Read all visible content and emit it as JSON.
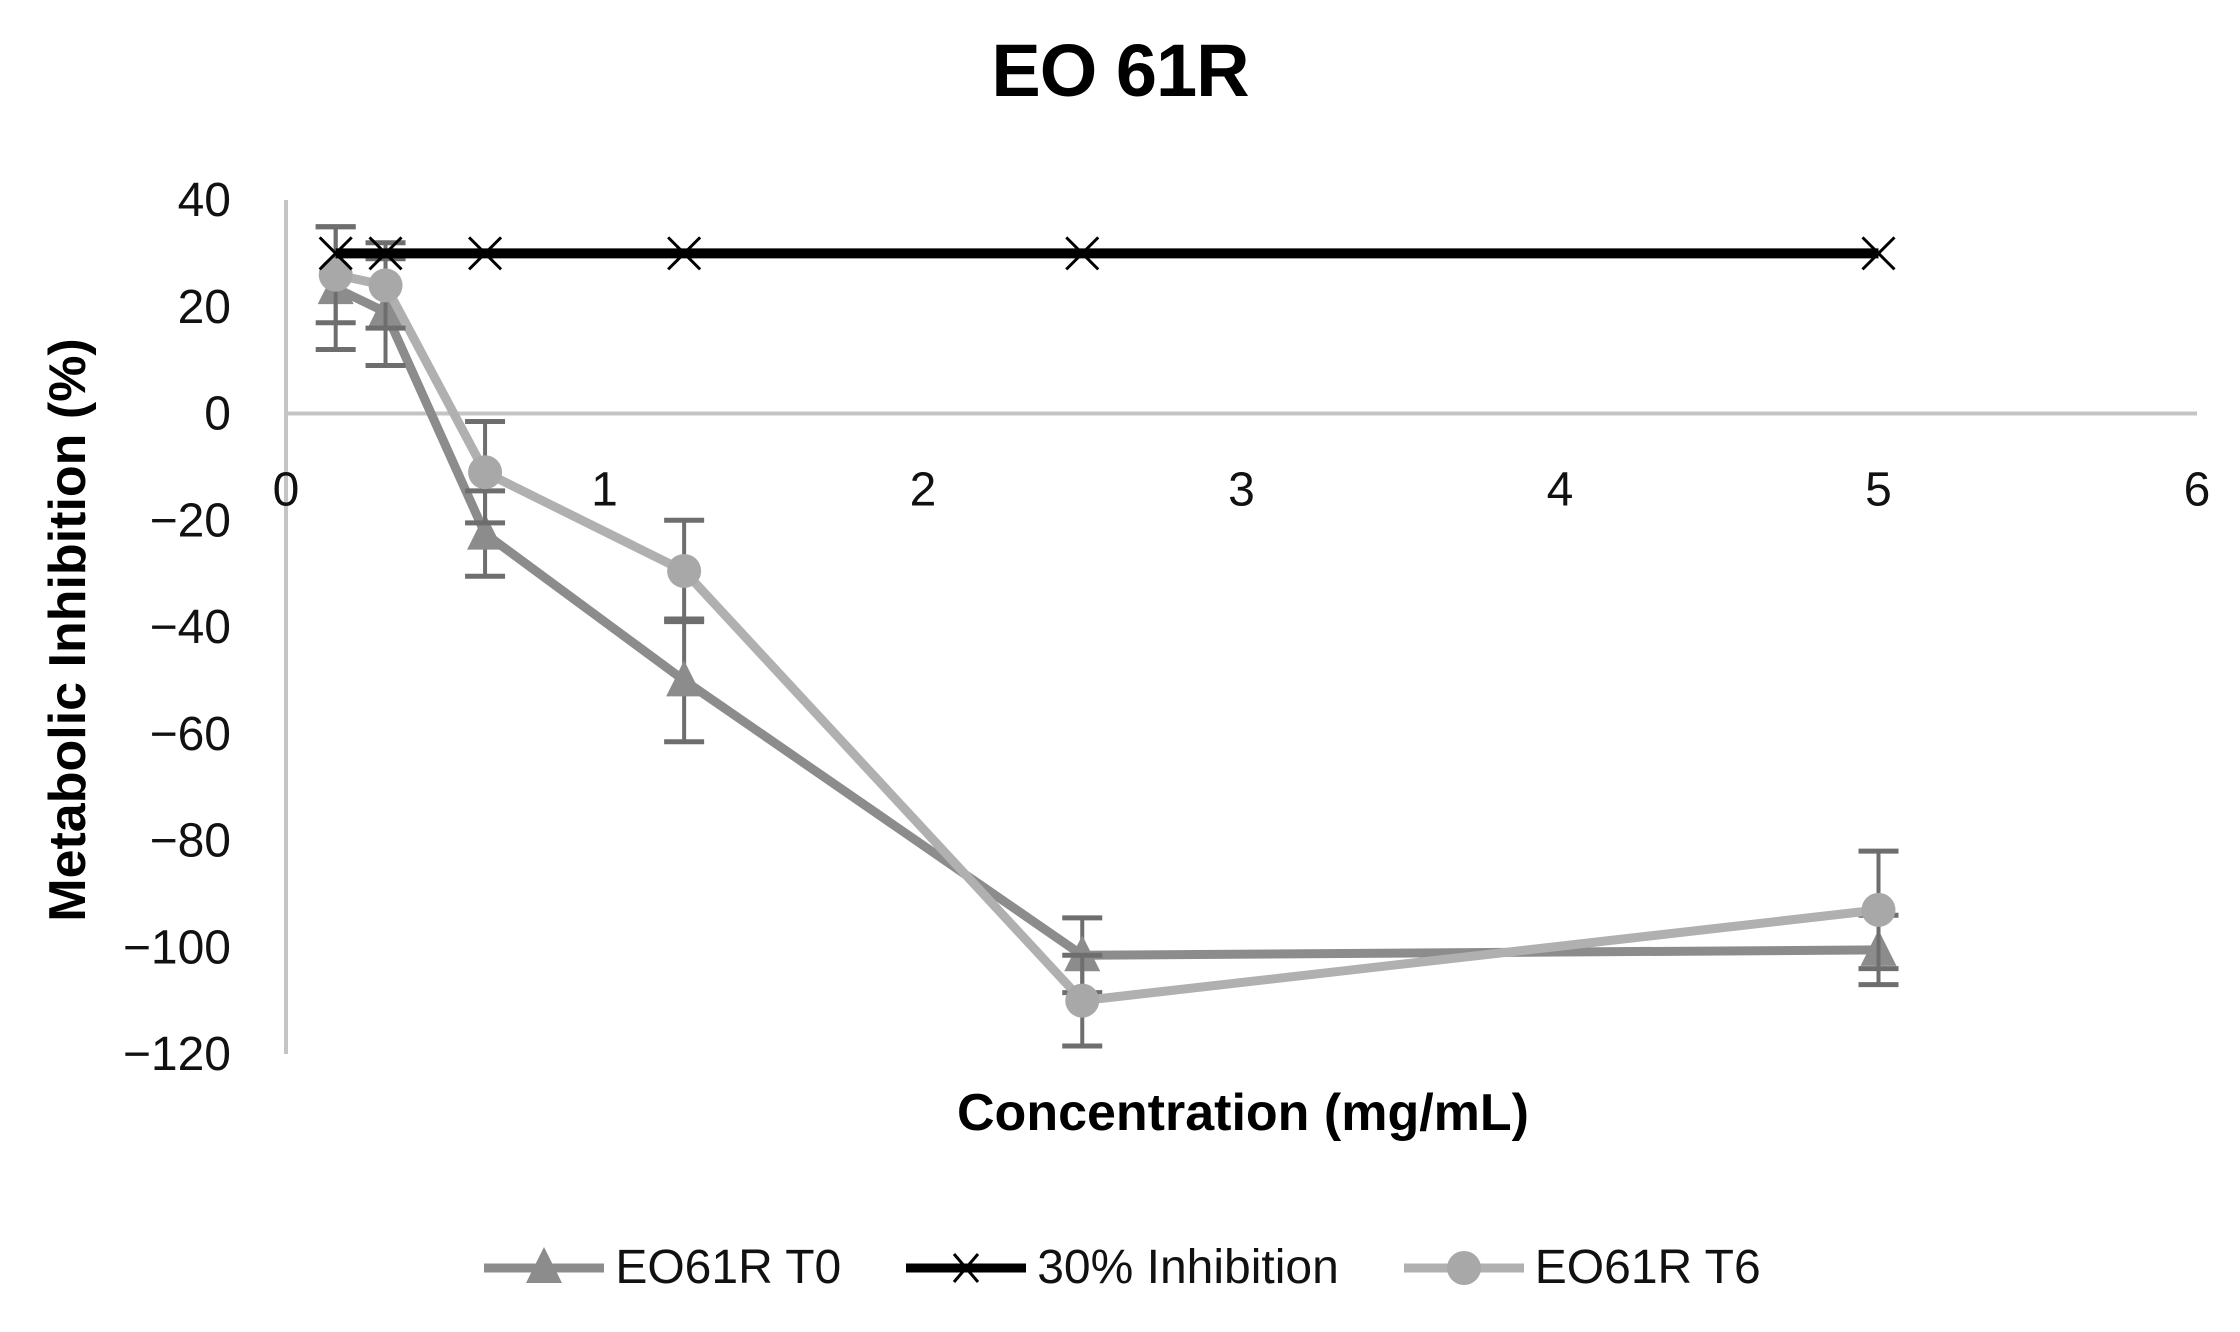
{
  "title": "EO 61R",
  "chart_data": {
    "type": "line",
    "title": "EO 61R",
    "xlabel": "Concentration (mg/mL)",
    "ylabel": "Metabolic Inhibition (%)",
    "xlim": [
      0,
      6
    ],
    "ylim": [
      -120,
      40
    ],
    "x_ticks": [
      "0",
      "1",
      "2",
      "3",
      "4",
      "5",
      "6"
    ],
    "y_ticks": [
      "40",
      "20",
      "0",
      "−20",
      "−40",
      "−60",
      "−80",
      "−100",
      "−120"
    ],
    "grid": false,
    "legend_position": "bottom",
    "x": [
      0.156,
      0.3125,
      0.625,
      1.25,
      2.5,
      5
    ],
    "series": [
      {
        "name": "EO61R T0",
        "marker": "triangle",
        "color": "#8c8c8c",
        "values": [
          23.5,
          19,
          -22.5,
          -50,
          -101.5,
          -100.5
        ],
        "error": [
          11.5,
          10,
          8,
          11.5,
          7,
          6.5
        ]
      },
      {
        "name": "30% Inhibition",
        "marker": "x",
        "color": "#000000",
        "values": [
          30,
          30,
          30,
          30,
          30,
          30
        ],
        "error": null
      },
      {
        "name": "EO61R T6",
        "marker": "circle",
        "color": "#b0b0b0",
        "values": [
          26,
          24,
          -11,
          -29.5,
          -110,
          -93
        ],
        "error": [
          9,
          8,
          9.5,
          9.5,
          8.5,
          11
        ]
      }
    ]
  },
  "legend": [
    {
      "label": "EO61R T0"
    },
    {
      "label": "30% Inhibition"
    },
    {
      "label": "EO61R T6"
    }
  ]
}
